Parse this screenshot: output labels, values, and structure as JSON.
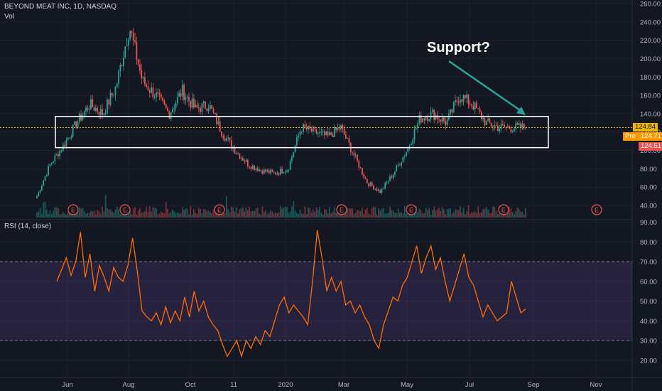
{
  "header": {
    "symbol_line": "BEYOND MEAT INC, 1D, NASDAQ",
    "volume_label": "Vol"
  },
  "rsi_header": "RSI (14, close)",
  "annotation": {
    "text": "Support?",
    "color": "#26a69a"
  },
  "price_tags": {
    "last": "124.84",
    "pre_label": "Pre",
    "pre_value": "124.71",
    "bid": "124.51"
  },
  "event_marker": "E",
  "colors": {
    "background": "#131722",
    "up": "#26a69a",
    "down": "#ef5350",
    "rsi_line": "#ff6d00",
    "rsi_band": "#7e57c2",
    "box": "#ffffff",
    "price_line": "#f0b400",
    "pre_tag": "#ff9800",
    "bid_tag": "#ef5350"
  },
  "chart_data": [
    {
      "type": "candlestick",
      "title": "BEYOND MEAT INC, 1D, NASDAQ",
      "y_axis_ticks": [
        40,
        60,
        80,
        100,
        120,
        140,
        160,
        180,
        200,
        220,
        240,
        260
      ],
      "ylim": [
        35,
        262
      ],
      "x_axis_ticks": [
        "Jun",
        "Aug",
        "Oct",
        "11",
        "2020",
        "Mar",
        "May",
        "Jul",
        "Sep",
        "Nov"
      ],
      "close_path": [
        [
          "Start",
          50
        ],
        [
          "Late May",
          85
        ],
        [
          "Jun",
          105
        ],
        [
          "Jun",
          130
        ],
        [
          "Mid Jun",
          150
        ],
        [
          "Jul",
          140
        ],
        [
          "Jul",
          170
        ],
        [
          "Late Jul",
          235
        ],
        [
          "Aug",
          175
        ],
        [
          "Aug",
          160
        ],
        [
          "Aug",
          140
        ],
        [
          "Sep",
          165
        ],
        [
          "Sep",
          145
        ],
        [
          "Oct",
          150
        ],
        [
          "Oct",
          120
        ],
        [
          "Oct",
          100
        ],
        [
          "11",
          85
        ],
        [
          "Nov",
          78
        ],
        [
          "Dec",
          75
        ],
        [
          "Dec",
          80
        ],
        [
          "2020",
          125
        ],
        [
          "Jan",
          120
        ],
        [
          "Feb",
          115
        ],
        [
          "Feb",
          125
        ],
        [
          "Mar",
          95
        ],
        [
          "Mar",
          65
        ],
        [
          "Mar",
          55
        ],
        [
          "Apr",
          75
        ],
        [
          "Apr",
          100
        ],
        [
          "May",
          135
        ],
        [
          "May",
          140
        ],
        [
          "Jun",
          130
        ],
        [
          "Jun",
          160
        ],
        [
          "Jul",
          150
        ],
        [
          "Jul",
          130
        ],
        [
          "Aug",
          125
        ],
        [
          "Aug",
          125
        ],
        [
          "End",
          124.84
        ]
      ],
      "support_zone": [
        103,
        137
      ],
      "last_price": 124.84,
      "earnings_markers": [
        "Jun",
        "Aug",
        "Oct",
        "Mar",
        "May",
        "Aug",
        "Nov"
      ]
    },
    {
      "type": "line",
      "title": "RSI (14, close)",
      "y_axis_ticks": [
        20,
        30,
        40,
        50,
        60,
        70,
        80,
        90
      ],
      "ylim": [
        14,
        91
      ],
      "band": [
        30,
        70
      ],
      "series": [
        {
          "values": [
            60,
            66,
            72,
            63,
            70,
            85,
            62,
            74,
            55,
            68,
            62,
            55,
            67,
            62,
            60,
            68,
            82,
            65,
            45,
            42,
            40,
            44,
            38,
            47,
            39,
            45,
            40,
            52,
            42,
            55,
            45,
            50,
            42,
            38,
            35,
            28,
            22,
            26,
            30,
            22,
            30,
            26,
            32,
            28,
            35,
            32,
            40,
            48,
            52,
            44,
            48,
            45,
            42,
            38,
            60,
            86,
            72,
            55,
            62,
            55,
            60,
            48,
            50,
            44,
            48,
            42,
            38,
            30,
            26,
            38,
            45,
            52,
            50,
            58,
            62,
            70,
            78,
            64,
            72,
            78,
            66,
            72,
            60,
            50,
            58,
            66,
            74,
            62,
            58,
            50,
            42,
            48,
            44,
            40,
            42,
            44,
            60,
            52,
            44,
            46
          ]
        }
      ]
    }
  ]
}
